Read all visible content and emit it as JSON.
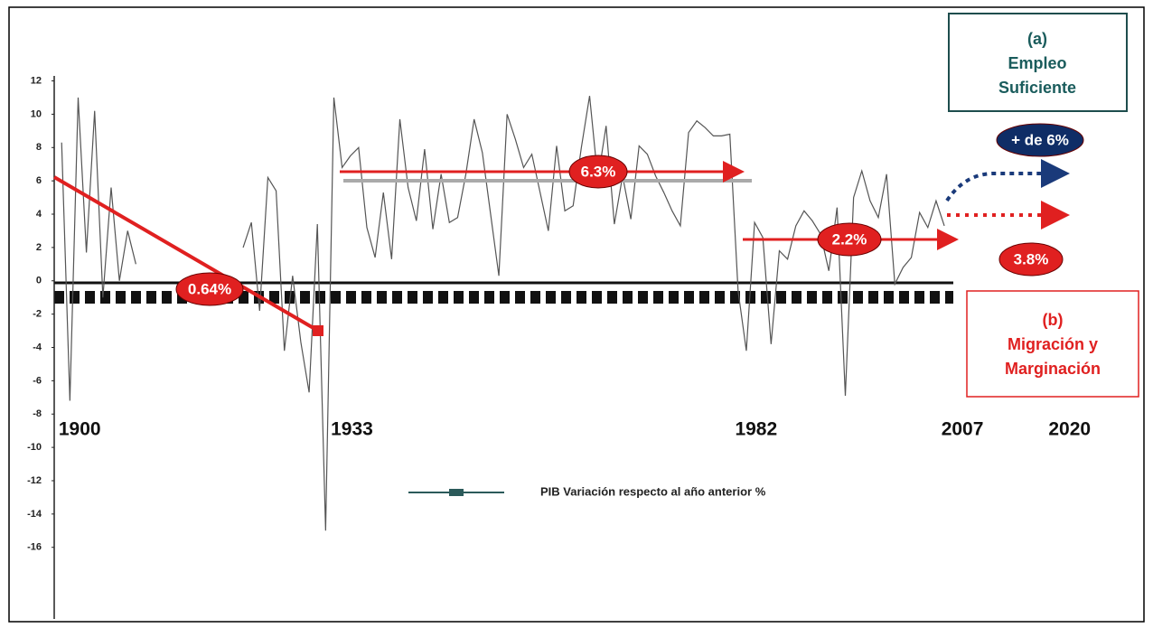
{
  "chart_data": {
    "type": "line",
    "x": [
      1900,
      1901,
      1902,
      1903,
      1904,
      1905,
      1906,
      1907,
      1908,
      1909,
      1910,
      1911,
      1912,
      1913,
      1914,
      1915,
      1916,
      1917,
      1918,
      1919,
      1920,
      1921,
      1922,
      1923,
      1924,
      1925,
      1926,
      1927,
      1928,
      1929,
      1930,
      1931,
      1932,
      1933,
      1934,
      1935,
      1936,
      1937,
      1938,
      1939,
      1940,
      1941,
      1942,
      1943,
      1944,
      1945,
      1946,
      1947,
      1948,
      1949,
      1950,
      1951,
      1952,
      1953,
      1954,
      1955,
      1956,
      1957,
      1958,
      1959,
      1960,
      1961,
      1962,
      1963,
      1964,
      1965,
      1966,
      1967,
      1968,
      1969,
      1970,
      1971,
      1972,
      1973,
      1974,
      1975,
      1976,
      1977,
      1978,
      1979,
      1980,
      1981,
      1982,
      1983,
      1984,
      1985,
      1986,
      1987,
      1988,
      1989,
      1990,
      1991,
      1992,
      1993,
      1994,
      1995,
      1996,
      1997,
      1998,
      1999,
      2000,
      2001,
      2002,
      2003,
      2004,
      2005,
      2006,
      2007
    ],
    "series": [
      {
        "name": "PIB Variación respecto al año anterior %",
        "color": "#555555",
        "values": [
          8.3,
          -7.2,
          11,
          1.7,
          10.2,
          -1,
          5.6,
          0,
          3,
          1,
          null,
          null,
          null,
          null,
          null,
          null,
          null,
          null,
          null,
          null,
          null,
          null,
          2,
          3.5,
          -1.8,
          6.2,
          5.4,
          -4.2,
          0.3,
          -3.7,
          -6.7,
          3.4,
          -15,
          11,
          6.8,
          7.5,
          8,
          3.2,
          1.4,
          5.3,
          1.3,
          9.7,
          5.6,
          3.6,
          7.9,
          3.1,
          6.4,
          3.5,
          3.8,
          6.4,
          9.7,
          7.7,
          4,
          0.3,
          10,
          8.5,
          6.8,
          7.6,
          5.3,
          3,
          8.1,
          4.2,
          4.5,
          8,
          11.1,
          6.1,
          9.3,
          3.4,
          6.3,
          3.7,
          8.1,
          7.6,
          6.3,
          5.3,
          4.2,
          3.3,
          8.9,
          9.6,
          9.2,
          8.7,
          8.7,
          8.8,
          -0.6,
          -4.2,
          3.5,
          2.6,
          -3.8,
          1.8,
          1.3,
          3.3,
          4.2,
          3.6,
          2.8,
          0.6,
          4.4,
          -6.9,
          5,
          6.6,
          4.8,
          3.8,
          6.4,
          -0.2,
          0.8,
          1.4,
          4.1,
          3.2,
          4.8,
          3.3
        ]
      }
    ],
    "xlim": [
      1899.1,
      2022
    ],
    "xticks": [
      1900,
      1933,
      1982,
      2007,
      2020
    ],
    "ylim": [
      -20.3,
      12.3
    ],
    "yticks": [
      12,
      10,
      8,
      6,
      4,
      2,
      0,
      -2,
      -4,
      -6,
      -8,
      -10,
      -12,
      -14,
      -16
    ],
    "annotations": [
      "0.64%",
      "6.3%",
      "2.2%",
      "+ de 6%",
      "3.8%"
    ],
    "box_a": [
      "(a)",
      "Empleo",
      "Suficiente"
    ],
    "box_b": [
      "(b)",
      "Migración y",
      "Marginación"
    ]
  }
}
